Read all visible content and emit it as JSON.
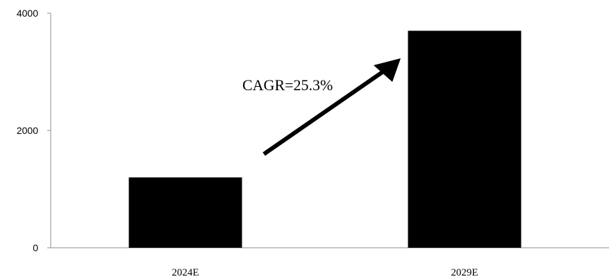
{
  "chart_data": {
    "type": "bar",
    "categories": [
      "2024E",
      "2029E"
    ],
    "values": [
      1200,
      3700
    ],
    "title": "",
    "xlabel": "",
    "ylabel": "",
    "ylim": [
      0,
      4000
    ],
    "yticks": [
      "0",
      "2000",
      "4000"
    ],
    "annotation": "CAGR=25.3%",
    "bar_color": "#000000",
    "grid": false,
    "legend": "none"
  }
}
